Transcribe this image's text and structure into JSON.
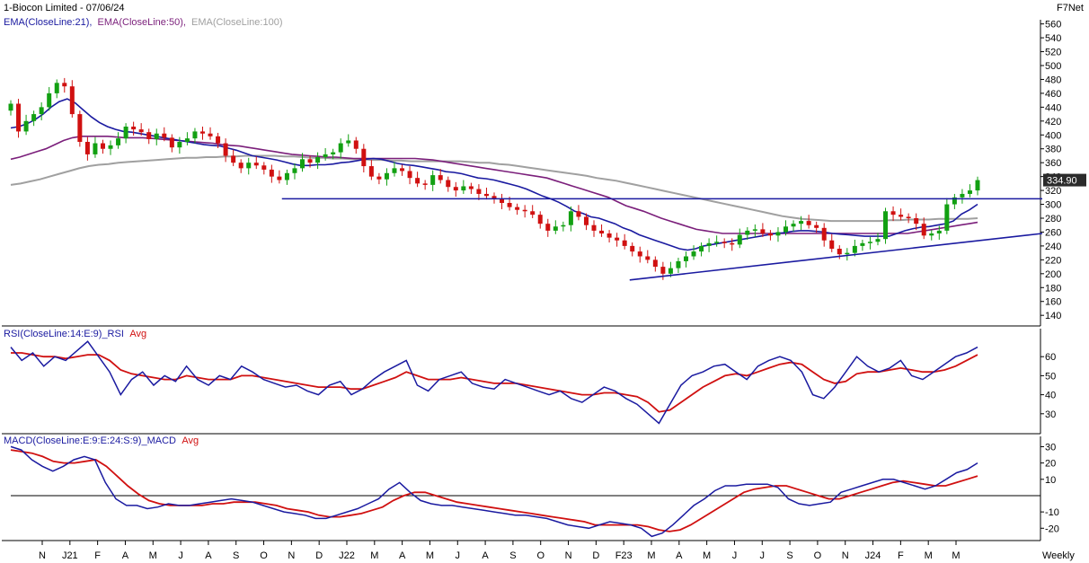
{
  "header": {
    "title": "1-Biocon Limited - 07/06/24",
    "brand": "F7Net",
    "period": "Weekly"
  },
  "chart_data": [
    {
      "type": "candlestick",
      "panel": "price",
      "legend": [
        {
          "text": "EMA(CloseLine:21),",
          "color": "#1a1aa0"
        },
        {
          "text": "EMA(CloseLine:50),",
          "color": "#7b1f7b"
        },
        {
          "text": "EMA(CloseLine:100)",
          "color": "#a0a0a0"
        }
      ],
      "y_ticks": [
        140,
        160,
        180,
        200,
        220,
        240,
        260,
        280,
        300,
        320,
        340,
        360,
        380,
        400,
        420,
        440,
        460,
        480,
        500,
        520,
        540,
        560
      ],
      "ylim": [
        126,
        566
      ],
      "last_price": "334.90",
      "close": [
        445,
        405,
        420,
        430,
        440,
        460,
        475,
        470,
        430,
        390,
        372,
        388,
        380,
        385,
        395,
        412,
        408,
        404,
        394,
        402,
        396,
        382,
        390,
        395,
        405,
        402,
        398,
        388,
        370,
        360,
        352,
        360,
        356,
        350,
        340,
        335,
        345,
        352,
        365,
        360,
        368,
        372,
        375,
        388,
        392,
        380,
        355,
        340,
        336,
        345,
        352,
        348,
        338,
        330,
        328,
        342,
        335,
        325,
        320,
        326,
        322,
        315,
        312,
        308,
        302,
        296,
        292,
        290,
        285,
        272,
        262,
        268,
        270,
        290,
        282,
        270,
        262,
        258,
        252,
        248,
        240,
        232,
        225,
        220,
        210,
        200,
        208,
        218,
        225,
        232,
        240,
        244,
        246,
        244,
        242,
        256,
        262,
        264,
        258,
        255,
        260,
        268,
        272,
        276,
        270,
        266,
        248,
        236,
        228,
        230,
        240,
        244,
        246,
        250,
        290,
        285,
        282,
        280,
        272,
        255,
        258,
        262,
        300,
        310,
        315,
        320,
        334.9
      ],
      "ema21": [
        410,
        412,
        416,
        422,
        430,
        440,
        448,
        452,
        446,
        436,
        426,
        418,
        412,
        408,
        405,
        404,
        402,
        400,
        398,
        396,
        394,
        392,
        390,
        388,
        386,
        385,
        384,
        381,
        378,
        374,
        370,
        368,
        366,
        364,
        361,
        358,
        356,
        356,
        357,
        357,
        358,
        360,
        361,
        363,
        365,
        366,
        365,
        362,
        359,
        357,
        356,
        354,
        352,
        350,
        347,
        346,
        344,
        341,
        338,
        337,
        335,
        332,
        329,
        326,
        322,
        317,
        312,
        308,
        303,
        297,
        290,
        287,
        282,
        280,
        276,
        272,
        266,
        262,
        256,
        252,
        248,
        244,
        240,
        236,
        234,
        236,
        240,
        242,
        244,
        246,
        248,
        250,
        252,
        254,
        256,
        258,
        259,
        261,
        262,
        262,
        261,
        260,
        258,
        257,
        256,
        255,
        254,
        254,
        254,
        254,
        258,
        262,
        265,
        267,
        268,
        270,
        272,
        276,
        286,
        292,
        300
      ],
      "ema50": [
        365,
        368,
        372,
        376,
        380,
        386,
        392,
        396,
        398,
        398,
        398,
        398,
        397,
        396,
        396,
        396,
        395,
        394,
        393,
        392,
        391,
        390,
        389,
        388,
        386,
        385,
        384,
        382,
        380,
        378,
        376,
        374,
        372,
        371,
        370,
        369,
        368,
        368,
        367,
        366,
        366,
        366,
        366,
        366,
        366,
        366,
        366,
        365,
        364,
        362,
        360,
        358,
        356,
        354,
        352,
        350,
        348,
        346,
        344,
        342,
        340,
        338,
        334,
        330,
        326,
        322,
        318,
        314,
        310,
        304,
        298,
        294,
        290,
        285,
        280,
        276,
        272,
        268,
        264,
        262,
        260,
        258,
        258,
        258,
        258,
        258,
        258,
        258,
        258,
        258,
        258,
        258,
        258,
        258,
        258,
        258,
        258,
        258,
        258,
        258,
        258,
        258,
        258,
        260,
        262,
        264,
        266,
        268,
        270,
        272,
        274
      ],
      "ema100": [
        328,
        330,
        333,
        336,
        340,
        344,
        348,
        352,
        355,
        357,
        358,
        360,
        361,
        362,
        363,
        364,
        365,
        366,
        367,
        367,
        368,
        368,
        369,
        369,
        370,
        370,
        370,
        370,
        369,
        369,
        368,
        367,
        367,
        366,
        366,
        365,
        365,
        364,
        364,
        363,
        363,
        362,
        362,
        362,
        362,
        362,
        362,
        361,
        360,
        360,
        358,
        357,
        355,
        353,
        351,
        349,
        347,
        345,
        343,
        341,
        338,
        336,
        334,
        331,
        328,
        325,
        322,
        319,
        316,
        313,
        310,
        307,
        304,
        301,
        298,
        295,
        292,
        289,
        286,
        283,
        281,
        279,
        278,
        277,
        276,
        276,
        276,
        276,
        276,
        276,
        277,
        277,
        278,
        278,
        278,
        279,
        279,
        279,
        279,
        280
      ]
    },
    {
      "type": "line",
      "panel": "rsi",
      "legend": [
        {
          "text": "RSI(CloseLine:14:E:9)_RSI",
          "color": "#1a1aa0"
        },
        {
          "text": "Avg",
          "color": "#d01010"
        }
      ],
      "y_ticks": [
        30,
        40,
        50,
        60
      ],
      "ylim": [
        20,
        70
      ],
      "rsi": [
        65,
        58,
        62,
        55,
        60,
        58,
        63,
        68,
        60,
        52,
        40,
        48,
        52,
        45,
        50,
        47,
        55,
        48,
        45,
        50,
        48,
        55,
        52,
        48,
        46,
        44,
        45,
        42,
        40,
        45,
        47,
        40,
        43,
        48,
        52,
        55,
        58,
        45,
        42,
        48,
        50,
        52,
        46,
        44,
        43,
        48,
        46,
        44,
        42,
        40,
        42,
        38,
        36,
        40,
        44,
        42,
        38,
        35,
        30,
        25,
        35,
        45,
        50,
        52,
        55,
        56,
        52,
        48,
        55,
        58,
        60,
        58,
        52,
        40,
        38,
        44,
        52,
        60,
        55,
        52,
        54,
        58,
        50,
        48,
        52,
        56,
        60,
        62,
        65
      ],
      "avg": [
        62,
        62,
        61,
        60,
        60,
        59,
        60,
        61,
        61,
        58,
        53,
        51,
        50,
        49,
        48,
        48,
        50,
        49,
        48,
        48,
        48,
        50,
        50,
        49,
        48,
        47,
        46,
        45,
        44,
        44,
        44,
        43,
        43,
        45,
        47,
        49,
        52,
        50,
        48,
        48,
        48,
        49,
        48,
        47,
        46,
        46,
        46,
        45,
        44,
        43,
        42,
        41,
        40,
        40,
        41,
        41,
        40,
        39,
        36,
        31,
        32,
        36,
        40,
        44,
        47,
        50,
        51,
        50,
        52,
        54,
        56,
        57,
        56,
        52,
        48,
        46,
        47,
        51,
        52,
        52,
        53,
        54,
        53,
        52,
        52,
        53,
        55,
        58,
        61
      ]
    },
    {
      "type": "line",
      "panel": "macd",
      "legend": [
        {
          "text": "MACD(CloseLine:E:9:E:24:S:9)_MACD",
          "color": "#1a1aa0"
        },
        {
          "text": "Avg",
          "color": "#d01010"
        }
      ],
      "y_ticks": [
        -20,
        -10,
        10,
        20,
        30
      ],
      "ylim": [
        -27,
        33
      ],
      "macd": [
        30,
        28,
        22,
        18,
        15,
        18,
        22,
        24,
        22,
        8,
        -2,
        -6,
        -6,
        -8,
        -7,
        -5,
        -6,
        -6,
        -5,
        -4,
        -3,
        -2,
        -3,
        -4,
        -6,
        -8,
        -10,
        -11,
        -12,
        -14,
        -14,
        -12,
        -10,
        -8,
        -5,
        -2,
        4,
        8,
        2,
        -3,
        -5,
        -6,
        -6,
        -7,
        -8,
        -9,
        -10,
        -11,
        -12,
        -12,
        -13,
        -14,
        -16,
        -18,
        -19,
        -20,
        -18,
        -16,
        -17,
        -18,
        -20,
        -25,
        -23,
        -18,
        -12,
        -6,
        -2,
        3,
        6,
        6,
        7,
        7,
        7,
        5,
        -2,
        -5,
        -6,
        -5,
        -4,
        2,
        4,
        6,
        8,
        10,
        10,
        8,
        6,
        4,
        6,
        10,
        14,
        16,
        20
      ],
      "avg": [
        28,
        27,
        26,
        24,
        21,
        20,
        20,
        21,
        22,
        18,
        12,
        6,
        1,
        -3,
        -5,
        -6,
        -6,
        -6,
        -6,
        -5,
        -5,
        -4,
        -4,
        -4,
        -5,
        -6,
        -8,
        -9,
        -10,
        -12,
        -13,
        -13,
        -12,
        -11,
        -9,
        -7,
        -3,
        0,
        2,
        2,
        0,
        -2,
        -4,
        -5,
        -6,
        -7,
        -8,
        -9,
        -10,
        -11,
        -12,
        -13,
        -14,
        -15,
        -16,
        -18,
        -18,
        -18,
        -18,
        -18,
        -19,
        -21,
        -22,
        -21,
        -18,
        -14,
        -10,
        -6,
        -2,
        2,
        4,
        5,
        6,
        6,
        4,
        2,
        0,
        -2,
        -2,
        0,
        2,
        4,
        6,
        8,
        9,
        8,
        7,
        6,
        6,
        8,
        10,
        12
      ]
    }
  ],
  "x_axis": {
    "labels": [
      "N",
      "J21",
      "F",
      "A",
      "M",
      "J",
      "A",
      "S",
      "O",
      "N",
      "D",
      "J22",
      "M",
      "A",
      "M",
      "J",
      "A",
      "S",
      "O",
      "N",
      "D",
      "F23",
      "M",
      "A",
      "M",
      "J",
      "J",
      "S",
      "O",
      "N",
      "J24",
      "F",
      "M",
      "M"
    ]
  },
  "annotations": {
    "trendlines": [
      {
        "name": "resistance",
        "from": {
          "week": 46,
          "value": 308
        },
        "to": {
          "week": 175,
          "value": 308
        },
        "color": "#1a1aa0"
      },
      {
        "name": "support",
        "from": {
          "week": 105,
          "value": 191
        },
        "to": {
          "week": 175,
          "value": 258
        },
        "color": "#1a1aa0"
      }
    ]
  },
  "colors": {
    "up": "#12a012",
    "down": "#d01010",
    "ema21": "#1a1aa0",
    "ema50": "#7b1f7b",
    "ema100": "#a0a0a0",
    "indicator": "#1a1aa0",
    "avg": "#d01010",
    "price_tag_bg": "#2b2b2b",
    "price_tag_fg": "#ffffff"
  }
}
